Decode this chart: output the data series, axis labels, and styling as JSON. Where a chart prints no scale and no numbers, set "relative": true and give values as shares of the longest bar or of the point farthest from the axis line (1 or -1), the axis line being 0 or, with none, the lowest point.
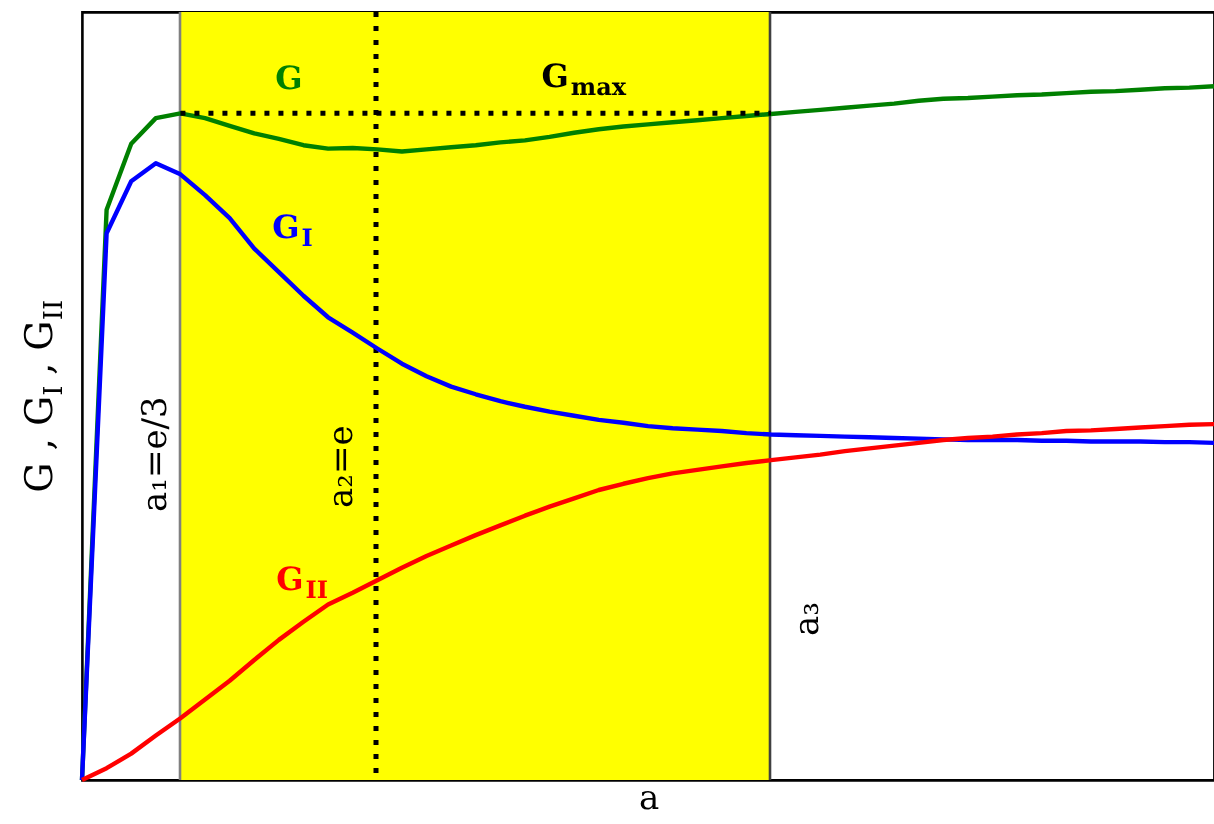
{
  "chart_data": {
    "type": "line",
    "relative": true,
    "xlabel": "a",
    "ylabel": "G , G$_{I}$ , G$_{II}$",
    "tick_labels": false,
    "categories": [
      null,
      null,
      null,
      null,
      null,
      null,
      null,
      null,
      null,
      null,
      null,
      null,
      null,
      null,
      null,
      null,
      null,
      null,
      null,
      null,
      null,
      null,
      null,
      null,
      null,
      null,
      null,
      null,
      null,
      null,
      null,
      null,
      null,
      null,
      null,
      null,
      null,
      null,
      null,
      null,
      null,
      null,
      null,
      null,
      null,
      null,
      null
    ],
    "series": [
      {
        "name": "G",
        "color": "#008000",
        "values": [
          0,
          0.822,
          0.917,
          0.954,
          0.961,
          0.954,
          0.943,
          0.932,
          0.924,
          0.915,
          0.91,
          0.911,
          0.909,
          0.906,
          0.909,
          0.912,
          0.915,
          0.919,
          0.922,
          0.927,
          0.933,
          0.938,
          0.942,
          0.945,
          0.948,
          0.951,
          0.954,
          0.957,
          0.96,
          0.963,
          0.966,
          0.969,
          0.972,
          0.975,
          0.979,
          0.982,
          0.983,
          0.985,
          0.987,
          0.988,
          0.99,
          0.992,
          0.993,
          0.995,
          0.997,
          0.998,
          1.0
        ]
      },
      {
        "name": "G$_{I}$",
        "color": "#0000ff",
        "values": [
          0,
          0.788,
          0.863,
          0.889,
          0.873,
          0.843,
          0.81,
          0.766,
          0.732,
          0.698,
          0.667,
          0.645,
          0.622,
          0.6,
          0.582,
          0.567,
          0.556,
          0.546,
          0.538,
          0.531,
          0.525,
          0.519,
          0.515,
          0.51,
          0.507,
          0.505,
          0.503,
          0.5,
          0.498,
          0.497,
          0.496,
          0.495,
          0.494,
          0.493,
          0.492,
          0.491,
          0.49,
          0.49,
          0.49,
          0.489,
          0.489,
          0.488,
          0.488,
          0.488,
          0.487,
          0.487,
          0.486
        ]
      },
      {
        "name": "G$_{II}$",
        "color": "#ff0000",
        "values": [
          0,
          0.017,
          0.038,
          0.064,
          0.089,
          0.116,
          0.143,
          0.173,
          0.202,
          0.228,
          0.253,
          0.27,
          0.288,
          0.306,
          0.323,
          0.338,
          0.353,
          0.367,
          0.381,
          0.394,
          0.406,
          0.418,
          0.427,
          0.435,
          0.442,
          0.447,
          0.452,
          0.457,
          0.461,
          0.465,
          0.469,
          0.474,
          0.478,
          0.482,
          0.486,
          0.49,
          0.493,
          0.495,
          0.498,
          0.5,
          0.503,
          0.504,
          0.506,
          0.508,
          0.51,
          0.512,
          0.513
        ]
      },
      {
        "name": "G$_{max}$",
        "type": "line",
        "line_style": "dotted",
        "color": "#000000",
        "values": [
          null,
          null,
          null,
          null,
          0.961,
          0.961,
          0.961,
          0.961,
          0.961,
          0.961,
          0.961,
          0.961,
          0.961,
          0.961,
          0.961,
          0.961,
          0.961,
          0.961,
          0.961,
          0.961,
          0.961,
          0.961,
          0.961,
          0.961,
          0.961,
          0.961,
          0.961,
          0.961,
          0.961,
          null,
          null,
          null,
          null,
          null,
          null,
          null,
          null,
          null,
          null,
          null,
          null,
          null,
          null,
          null,
          null,
          null,
          null
        ]
      }
    ],
    "annotations": [
      "a₁=e/3",
      "a₂=e",
      "a₃"
    ]
  }
}
